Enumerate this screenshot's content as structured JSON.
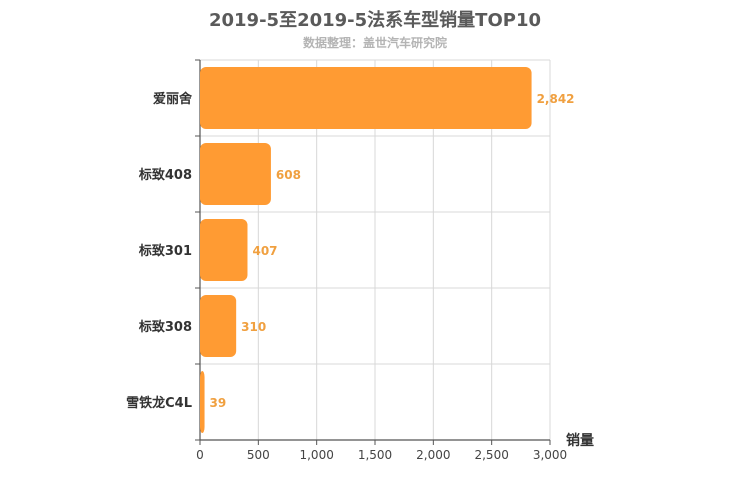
{
  "header": {
    "title": "2019-5至2019-5法系车型销量TOP10",
    "subtitle": "数据整理：盖世汽车研究院"
  },
  "colors": {
    "bar": "#ff9b33",
    "value_label": "#f0a040",
    "grid": "#d8d8d8",
    "axis": "#555555"
  },
  "chart_data": {
    "type": "bar",
    "orientation": "horizontal",
    "title": "2019-5至2019-5法系车型销量TOP10",
    "subtitle": "数据整理：盖世汽车研究院",
    "categories": [
      "爱丽舍",
      "标致408",
      "标致301",
      "标致308",
      "雪铁龙C4L"
    ],
    "values": [
      2842,
      608,
      407,
      310,
      39
    ],
    "value_labels": [
      "2,842",
      "608",
      "407",
      "310",
      "39"
    ],
    "xlabel": "销量",
    "ylabel": "",
    "xlim": [
      0,
      3000
    ],
    "xticks": [
      0,
      500,
      1000,
      1500,
      2000,
      2500,
      3000
    ],
    "xtick_labels": [
      "0",
      "500",
      "1,000",
      "1,500",
      "2,000",
      "2,500",
      "3,000"
    ],
    "grid": true,
    "legend": "none"
  }
}
